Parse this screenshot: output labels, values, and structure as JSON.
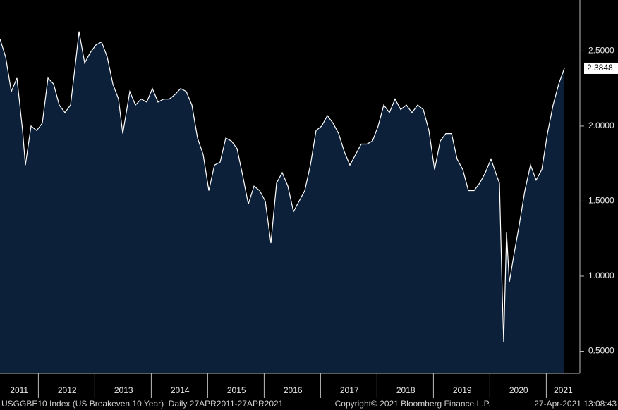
{
  "chart_data": {
    "type": "area",
    "x": [
      2011.32,
      2011.42,
      2011.52,
      2011.62,
      2011.72,
      2011.77,
      2011.87,
      2011.97,
      2012.07,
      2012.17,
      2012.27,
      2012.37,
      2012.47,
      2012.57,
      2012.67,
      2012.72,
      2012.82,
      2012.92,
      2013.02,
      2013.12,
      2013.22,
      2013.32,
      2013.42,
      2013.495,
      2013.62,
      2013.72,
      2013.82,
      2013.92,
      2014.02,
      2014.12,
      2014.22,
      2014.32,
      2014.42,
      2014.52,
      2014.62,
      2014.72,
      2014.82,
      2014.92,
      2015.02,
      2015.12,
      2015.22,
      2015.32,
      2015.42,
      2015.52,
      2015.62,
      2015.72,
      2015.82,
      2015.92,
      2016.02,
      2016.12,
      2016.22,
      2016.32,
      2016.42,
      2016.52,
      2016.62,
      2016.72,
      2016.82,
      2016.92,
      2017.02,
      2017.12,
      2017.22,
      2017.32,
      2017.42,
      2017.52,
      2017.62,
      2017.72,
      2017.82,
      2017.92,
      2018.02,
      2018.12,
      2018.22,
      2018.32,
      2018.42,
      2018.52,
      2018.62,
      2018.72,
      2018.82,
      2018.92,
      2019.02,
      2019.12,
      2019.22,
      2019.32,
      2019.42,
      2019.52,
      2019.62,
      2019.72,
      2019.82,
      2019.92,
      2020.02,
      2020.12,
      2020.17,
      2020.22,
      2020.245,
      2020.295,
      2020.345,
      2020.42,
      2020.52,
      2020.62,
      2020.72,
      2020.82,
      2020.92,
      2021.02,
      2021.12,
      2021.22,
      2021.32
    ],
    "values": [
      2.58,
      2.46,
      2.23,
      2.32,
      1.97,
      1.74,
      2.0,
      1.97,
      2.02,
      2.32,
      2.28,
      2.14,
      2.09,
      2.14,
      2.46,
      2.63,
      2.42,
      2.49,
      2.54,
      2.56,
      2.46,
      2.28,
      2.18,
      1.95,
      2.23,
      2.14,
      2.18,
      2.16,
      2.25,
      2.16,
      2.18,
      2.18,
      2.21,
      2.25,
      2.23,
      2.14,
      1.92,
      1.81,
      1.57,
      1.74,
      1.76,
      1.92,
      1.9,
      1.85,
      1.67,
      1.48,
      1.6,
      1.57,
      1.5,
      1.22,
      1.62,
      1.69,
      1.6,
      1.43,
      1.5,
      1.57,
      1.74,
      1.97,
      2.0,
      2.07,
      2.02,
      1.95,
      1.83,
      1.74,
      1.81,
      1.88,
      1.88,
      1.9,
      2.0,
      2.14,
      2.09,
      2.18,
      2.11,
      2.14,
      2.09,
      2.14,
      2.11,
      1.97,
      1.71,
      1.9,
      1.95,
      1.95,
      1.78,
      1.71,
      1.57,
      1.57,
      1.62,
      1.69,
      1.78,
      1.67,
      1.62,
      0.87,
      0.56,
      1.29,
      0.96,
      1.13,
      1.34,
      1.57,
      1.74,
      1.64,
      1.71,
      1.95,
      2.14,
      2.28,
      2.3848
    ],
    "color": "#ffffff",
    "fill": "#0c2039",
    "last_value": 2.3848,
    "xlim": [
      2011.32,
      2021.595
    ],
    "ylim": [
      0.352,
      2.84
    ],
    "xticks": [
      {
        "value": 2011.66,
        "label": "2011"
      },
      {
        "value": 2012.51,
        "label": "2012"
      },
      {
        "value": 2013.51,
        "label": "2013"
      },
      {
        "value": 2014.51,
        "label": "2014"
      },
      {
        "value": 2015.51,
        "label": "2015"
      },
      {
        "value": 2016.51,
        "label": "2016"
      },
      {
        "value": 2017.51,
        "label": "2017"
      },
      {
        "value": 2018.51,
        "label": "2018"
      },
      {
        "value": 2019.51,
        "label": "2019"
      },
      {
        "value": 2020.51,
        "label": "2020"
      },
      {
        "value": 2021.3,
        "label": "2021"
      }
    ],
    "yticks": [
      {
        "value": 0.5,
        "label": "0.5000"
      },
      {
        "value": 1.0,
        "label": "1.0000"
      },
      {
        "value": 1.5,
        "label": "1.5000"
      },
      {
        "value": 2.0,
        "label": "2.0000"
      },
      {
        "value": 2.5,
        "label": "2.5000"
      }
    ],
    "footer_left": "USGGBE10 Index (US Breakeven 10 Year)  Daily 27APR2011-27APR2021",
    "footer_center": "Copyright© 2021 Bloomberg Finance L.P.",
    "footer_right": "27-Apr-2021 13:08:43"
  }
}
